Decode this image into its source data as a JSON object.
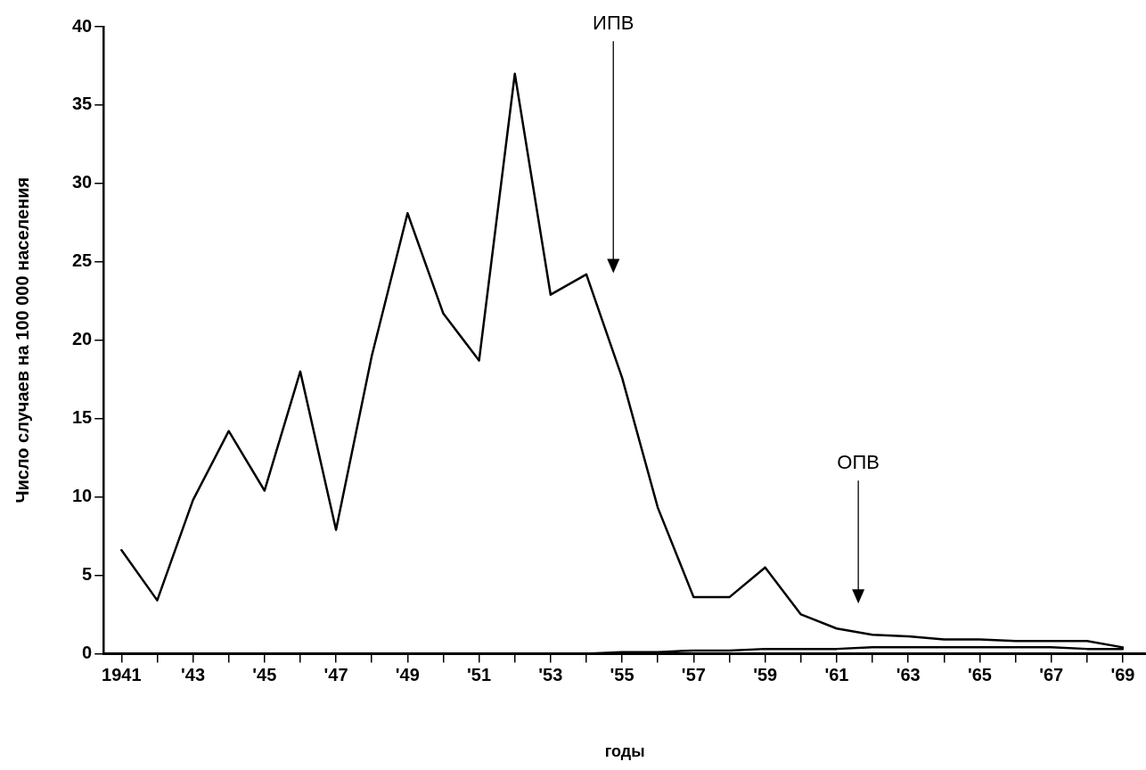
{
  "chart_data": {
    "type": "line",
    "xlabel": "годы",
    "ylabel": "Число случаев на 100 000 населения",
    "x": [
      1941,
      1942,
      1943,
      1944,
      1945,
      1946,
      1947,
      1948,
      1949,
      1950,
      1951,
      1952,
      1953,
      1954,
      1955,
      1956,
      1957,
      1958,
      1959,
      1960,
      1961,
      1962,
      1963,
      1964,
      1965,
      1966,
      1967,
      1968,
      1969
    ],
    "series": [
      {
        "color": "#000000",
        "values": [
          6.6,
          3.4,
          9.8,
          14.2,
          10.4,
          18,
          7.9,
          19,
          28.1,
          21.7,
          18.7,
          37,
          22.9,
          24.2,
          17.6,
          9.3,
          3.6,
          3.6,
          5.5,
          2.5,
          1.6,
          1.2,
          1.1,
          0.9,
          0.9,
          0.8,
          0.8,
          0.8,
          0.4
        ]
      },
      {
        "color": "#000000",
        "values": [
          0,
          0,
          0,
          0,
          0,
          0,
          0,
          0,
          0,
          0,
          0,
          0,
          0,
          0,
          0.1,
          0.1,
          0.2,
          0.2,
          0.3,
          0.3,
          0.3,
          0.4,
          0.4,
          0.4,
          0.4,
          0.4,
          0.4,
          0.3,
          0.3
        ]
      }
    ],
    "xlim": [
      1940.5,
      1969.65
    ],
    "xticks": [
      1941,
      {
        "value": 1942,
        "label": null
      },
      {
        "value": 1943,
        "label": "'43"
      },
      {
        "value": 1944,
        "label": null
      },
      {
        "value": 1945,
        "label": "'45"
      },
      {
        "value": 1946,
        "label": null
      },
      {
        "value": 1947,
        "label": "'47"
      },
      {
        "value": 1948,
        "label": null
      },
      {
        "value": 1949,
        "label": "'49"
      },
      {
        "value": 1950,
        "label": null
      },
      {
        "value": 1951,
        "label": "'51"
      },
      {
        "value": 1952,
        "label": null
      },
      {
        "value": 1953,
        "label": "'53"
      },
      {
        "value": 1954,
        "label": null
      },
      {
        "value": 1955,
        "label": "'55"
      },
      {
        "value": 1956,
        "label": null
      },
      {
        "value": 1957,
        "label": "'57"
      },
      {
        "value": 1958,
        "label": null
      },
      {
        "value": 1959,
        "label": "'59"
      },
      {
        "value": 1960,
        "label": null
      },
      {
        "value": 1961,
        "label": "'61"
      },
      {
        "value": 1962,
        "label": null
      },
      {
        "value": 1963,
        "label": "'63"
      },
      {
        "value": 1964,
        "label": null
      },
      {
        "value": 1965,
        "label": "'65"
      },
      {
        "value": 1966,
        "label": null
      },
      {
        "value": 1967,
        "label": "'67"
      },
      {
        "value": 1968,
        "label": null
      },
      {
        "value": 1969,
        "label": "'69"
      }
    ],
    "ylim": [
      0,
      40
    ],
    "yticks": [
      0,
      5,
      10,
      15,
      20,
      25,
      30,
      35,
      40
    ],
    "grid": false,
    "legend": false,
    "marker": "none",
    "line_style": "solid",
    "annotations": [
      "ИПВ",
      "ОПВ"
    ]
  }
}
